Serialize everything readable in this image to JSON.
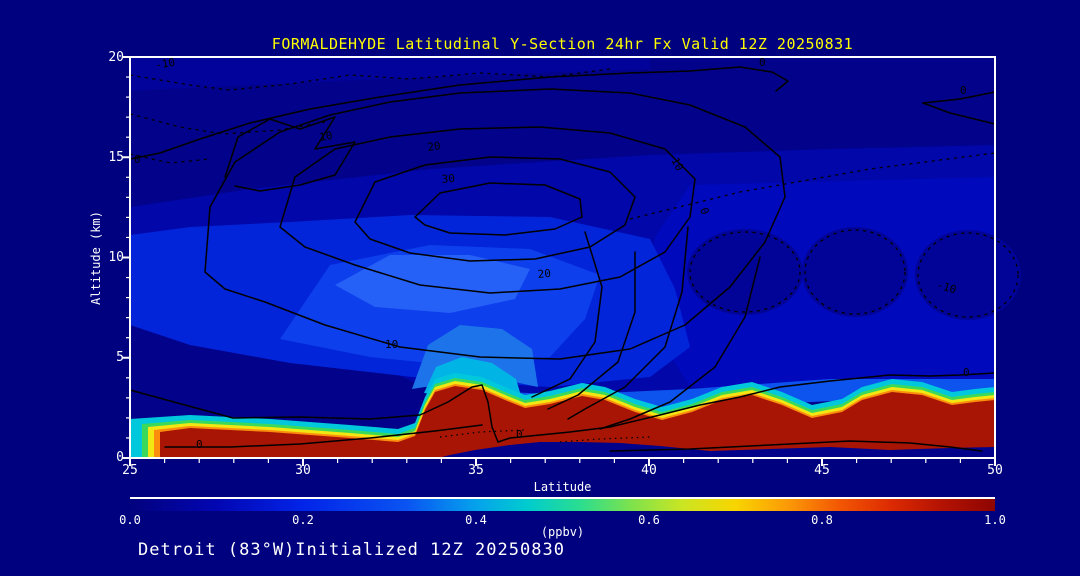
{
  "title": {
    "text": "FORMALDEHYDE Latitudinal Y-Section 24hr  Fx Valid 12Z 20250831",
    "color": "#FFFF00"
  },
  "caption": {
    "text": "Detroit (83°W)Initialized 12Z 20250830",
    "color": "#FFFFFF"
  },
  "axes": {
    "x": {
      "label": "Latitude",
      "min": 25,
      "max": 50,
      "tick_labels": [
        "25",
        "30",
        "35",
        "40",
        "45",
        "50"
      ],
      "minor_tick_interval_deg": 1
    },
    "y": {
      "label": "Altitude (km)",
      "min": 0,
      "max": 20,
      "tick_labels": [
        "20",
        "15",
        "10",
        "5",
        "0"
      ],
      "minor_tick_interval_km": 1
    }
  },
  "colorbar": {
    "unit": "(ppbv)",
    "tick_labels": [
      "0.0",
      "0.2",
      "0.4",
      "0.6",
      "0.8",
      "1.0"
    ],
    "range": [
      0.0,
      1.0
    ],
    "stops": [
      "#02027E",
      "#0206B2",
      "#0224E8",
      "#0A54F2",
      "#05A2EC",
      "#00CCCE",
      "#2ADD90",
      "#7EE24C",
      "#CCE522",
      "#F8D500",
      "#FB9A06",
      "#F35704",
      "#DC2A02",
      "#B31202",
      "#8E0500"
    ]
  },
  "contours": {
    "description": "black overlay contours, solid positive / dashed negative, labeled in field units",
    "levels": [
      -10,
      0,
      10,
      20,
      30,
      40
    ],
    "labels": [
      {
        "text": "-10"
      },
      {
        "text": "0"
      },
      {
        "text": "10"
      },
      {
        "text": "20"
      },
      {
        "text": "30"
      },
      {
        "text": "20"
      },
      {
        "text": "10"
      },
      {
        "text": "10"
      },
      {
        "text": "0"
      },
      {
        "text": "0"
      },
      {
        "text": "0"
      },
      {
        "text": "-10"
      },
      {
        "text": "0"
      },
      {
        "text": "0"
      },
      {
        "text": "0"
      }
    ]
  },
  "chart_data": {
    "type": "heatmap",
    "title": "FORMALDEHYDE Latitudinal Y-Section 24hr  Fx Valid 12Z 20250831",
    "xlabel": "Latitude",
    "ylabel": "Altitude (km)",
    "xlim": [
      25,
      50
    ],
    "ylim": [
      0,
      20
    ],
    "fill_units": "ppbv",
    "fill_range": [
      0.0,
      1.0
    ],
    "x_lat": [
      25,
      27.5,
      30,
      32.5,
      35,
      37.5,
      40,
      42.5,
      45,
      47.5,
      50
    ],
    "y_alt_km": [
      0,
      1,
      2,
      3,
      5,
      8,
      10,
      12,
      15,
      18,
      20
    ],
    "values_ppbv_rows_by_alt": [
      [
        0.95,
        1.0,
        1.0,
        0.8,
        0.05,
        0.05,
        0.05,
        0.05,
        0.05,
        0.05,
        0.05
      ],
      [
        0.3,
        0.15,
        0.1,
        0.9,
        1.0,
        1.0,
        1.0,
        1.0,
        1.0,
        1.0,
        1.0
      ],
      [
        0.15,
        0.1,
        0.1,
        0.5,
        1.0,
        0.7,
        0.9,
        0.6,
        0.9,
        0.8,
        1.0
      ],
      [
        0.1,
        0.1,
        0.1,
        0.3,
        0.55,
        0.3,
        0.35,
        0.3,
        0.45,
        0.4,
        0.5
      ],
      [
        0.1,
        0.15,
        0.25,
        0.3,
        0.35,
        0.3,
        0.3,
        0.3,
        0.3,
        0.3,
        0.3
      ],
      [
        0.15,
        0.3,
        0.4,
        0.45,
        0.4,
        0.35,
        0.3,
        0.3,
        0.35,
        0.3,
        0.3
      ],
      [
        0.15,
        0.25,
        0.35,
        0.4,
        0.35,
        0.3,
        0.25,
        0.2,
        0.25,
        0.25,
        0.25
      ],
      [
        0.1,
        0.15,
        0.2,
        0.25,
        0.25,
        0.25,
        0.2,
        0.15,
        0.2,
        0.2,
        0.2
      ],
      [
        0.05,
        0.1,
        0.1,
        0.1,
        0.1,
        0.1,
        0.1,
        0.1,
        0.1,
        0.1,
        0.1
      ],
      [
        0.05,
        0.05,
        0.05,
        0.05,
        0.05,
        0.05,
        0.05,
        0.05,
        0.05,
        0.05,
        0.05
      ],
      [
        0.05,
        0.05,
        0.05,
        0.05,
        0.05,
        0.05,
        0.05,
        0.05,
        0.05,
        0.05,
        0.05
      ]
    ],
    "overlay_contours": {
      "levels": [
        -10,
        0,
        10,
        20,
        30,
        40
      ],
      "style": "solid positive, dashed negative",
      "max_center": {
        "lat": 35,
        "alt_km": 12.5,
        "value_above": 40
      },
      "minima_dashed": [
        {
          "lat_range": [
            41,
            50
          ],
          "alt_km_range": [
            8,
            11
          ]
        },
        {
          "lat": 26,
          "alt_km": 19
        }
      ]
    },
    "legend_position": "bottom colorbar",
    "grid": false
  },
  "colors": {
    "page_background": "#00017E",
    "field_base": "#02028A",
    "field_bright_blue": "#0D3FEC",
    "surface_max_red": "#A81505",
    "fringe_cyan": "#00C8DC",
    "frame": "#FFFFFF",
    "title": "#FFFF00",
    "contour_line": "#000000"
  }
}
